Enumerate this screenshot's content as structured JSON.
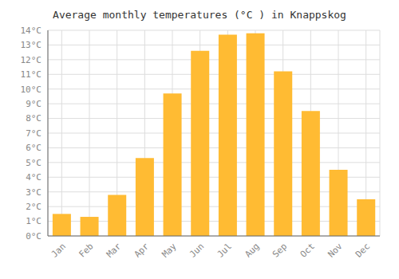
{
  "chart_data": {
    "type": "bar",
    "title": "Average monthly temperatures (°C ) in Knappskog",
    "categories": [
      "Jan",
      "Feb",
      "Mar",
      "Apr",
      "May",
      "Jun",
      "Jul",
      "Aug",
      "Sep",
      "Oct",
      "Nov",
      "Dec"
    ],
    "values": [
      1.5,
      1.3,
      2.8,
      5.3,
      9.7,
      12.6,
      13.7,
      13.8,
      11.2,
      8.5,
      4.5,
      2.5
    ],
    "color": "#FFBB33",
    "ylim": [
      0,
      14
    ],
    "yticks": [
      {
        "value": 0,
        "label": "0°C"
      },
      {
        "value": 1,
        "label": "1°C"
      },
      {
        "value": 2,
        "label": "2°C"
      },
      {
        "value": 3,
        "label": "3°C"
      },
      {
        "value": 4,
        "label": "4°C"
      },
      {
        "value": 5,
        "label": "5°C"
      },
      {
        "value": 6,
        "label": "6°C"
      },
      {
        "value": 7,
        "label": "7°C"
      },
      {
        "value": 8,
        "label": "8°C"
      },
      {
        "value": 9,
        "label": "9°C"
      },
      {
        "value": 10,
        "label": "10°C"
      },
      {
        "value": 11,
        "label": "11°C"
      },
      {
        "value": 12,
        "label": "12°C"
      },
      {
        "value": 13,
        "label": "13°C"
      },
      {
        "value": 14,
        "label": "14°C"
      }
    ],
    "grid": true
  }
}
